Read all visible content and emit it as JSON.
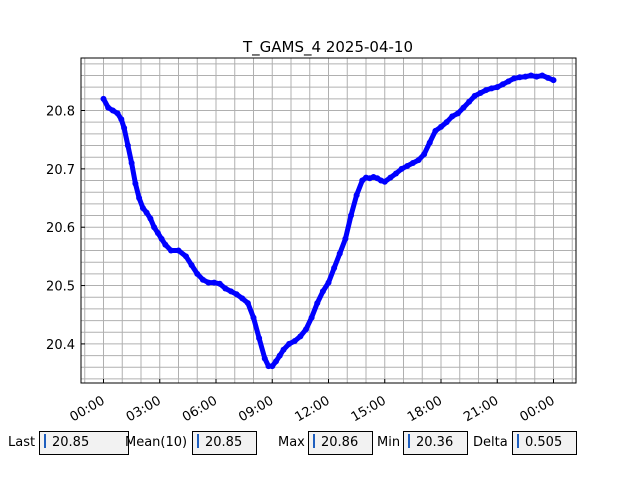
{
  "chart_data": {
    "type": "line",
    "title": "T_GAMS_4 2025-04-10",
    "xlabel": "",
    "ylabel": "",
    "x_tick_labels": [
      "00:00",
      "03:00",
      "06:00",
      "09:00",
      "12:00",
      "15:00",
      "18:00",
      "21:00",
      "00:00"
    ],
    "x_tick_hours": [
      0,
      3,
      6,
      9,
      12,
      15,
      18,
      21,
      24
    ],
    "x_range_hours": [
      -1.2,
      25.2
    ],
    "y_ticks": [
      20.4,
      20.5,
      20.6,
      20.7,
      20.8
    ],
    "y_range": [
      20.333,
      20.89
    ],
    "grid": true,
    "series": [
      {
        "color": "#0000ff",
        "x_hours": [
          0.0,
          0.25,
          0.5,
          0.75,
          0.95,
          1.1,
          1.3,
          1.5,
          1.7,
          1.9,
          2.1,
          2.3,
          2.5,
          2.7,
          2.9,
          3.1,
          3.3,
          3.6,
          4.0,
          4.4,
          4.7,
          5.0,
          5.3,
          5.6,
          5.9,
          6.2,
          6.5,
          6.8,
          7.1,
          7.4,
          7.7,
          8.0,
          8.3,
          8.6,
          8.8,
          9.0,
          9.2,
          9.4,
          9.6,
          9.9,
          10.2,
          10.5,
          10.8,
          11.1,
          11.4,
          11.7,
          12.0,
          12.3,
          12.6,
          12.9,
          13.2,
          13.5,
          13.8,
          14.0,
          14.2,
          14.4,
          14.6,
          14.8,
          15.0,
          15.3,
          15.6,
          15.9,
          16.2,
          16.5,
          16.8,
          17.1,
          17.4,
          17.7,
          18.0,
          18.3,
          18.6,
          18.9,
          19.2,
          19.5,
          19.8,
          20.1,
          20.4,
          20.7,
          21.0,
          21.3,
          21.6,
          21.9,
          22.2,
          22.5,
          22.8,
          23.1,
          23.4,
          23.7,
          24.0
        ],
        "values": [
          20.82,
          20.805,
          20.8,
          20.795,
          20.785,
          20.77,
          20.74,
          20.71,
          20.675,
          20.65,
          20.633,
          20.625,
          20.615,
          20.6,
          20.59,
          20.58,
          20.57,
          20.56,
          20.56,
          20.55,
          20.535,
          20.52,
          20.51,
          20.505,
          20.505,
          20.503,
          20.495,
          20.49,
          20.485,
          20.478,
          20.47,
          20.445,
          20.41,
          20.375,
          20.362,
          20.362,
          20.37,
          20.38,
          20.39,
          20.4,
          20.405,
          20.413,
          20.425,
          20.445,
          20.47,
          20.49,
          20.505,
          20.53,
          20.555,
          20.58,
          20.62,
          20.655,
          20.68,
          20.685,
          20.684,
          20.686,
          20.684,
          20.68,
          20.678,
          20.685,
          20.692,
          20.7,
          20.705,
          20.71,
          20.715,
          20.725,
          20.745,
          20.765,
          20.772,
          20.78,
          20.79,
          20.795,
          20.805,
          20.815,
          20.825,
          20.83,
          20.835,
          20.838,
          20.84,
          20.845,
          20.85,
          20.855,
          20.857,
          20.858,
          20.86,
          20.858,
          20.86,
          20.856,
          20.852
        ]
      }
    ]
  },
  "stats": {
    "last": {
      "label": "Last",
      "value": "20.85"
    },
    "mean": {
      "label": "Mean(10)",
      "value": "20.85"
    },
    "max": {
      "label": "Max",
      "value": "20.86"
    },
    "min": {
      "label": "Min",
      "value": "20.36"
    },
    "delta": {
      "label": "Delta",
      "value": "0.505"
    }
  }
}
